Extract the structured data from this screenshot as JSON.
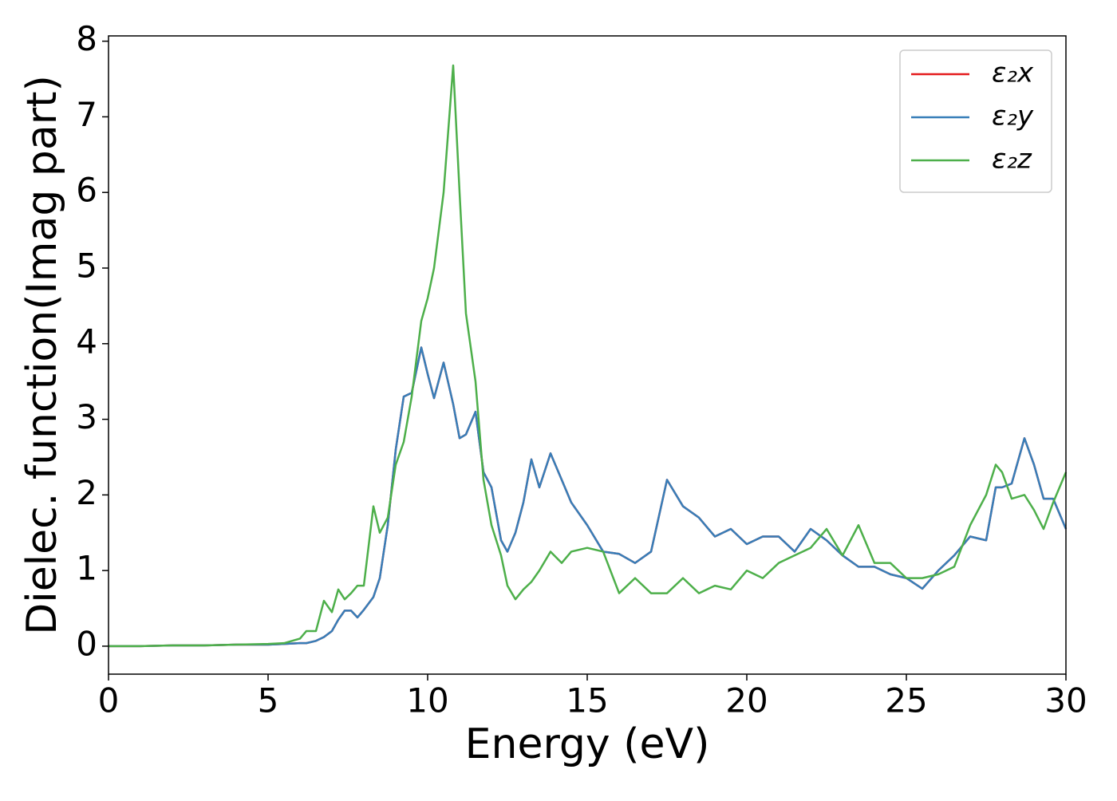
{
  "chart_data": {
    "type": "line",
    "xlabel": "Energy (eV)",
    "ylabel": "Dielec. function(Imag part)",
    "x": [
      0,
      1,
      2,
      3,
      4,
      5,
      5.5,
      6,
      6.2,
      6.5,
      6.75,
      7,
      7.2,
      7.4,
      7.6,
      7.8,
      8,
      8.3,
      8.5,
      8.75,
      9,
      9.25,
      9.5,
      9.8,
      10,
      10.2,
      10.5,
      10.8,
      11,
      11.2,
      11.5,
      11.75,
      12,
      12.3,
      12.5,
      12.75,
      13,
      13.25,
      13.5,
      13.85,
      14.2,
      14.5,
      15,
      15.5,
      16,
      16.5,
      17,
      17.5,
      18,
      18.5,
      19,
      19.5,
      20,
      20.5,
      21,
      21.5,
      22,
      22.5,
      23,
      23.5,
      24,
      24.5,
      25,
      25.5,
      26,
      26.5,
      27,
      27.5,
      27.8,
      28,
      28.3,
      28.7,
      29,
      29.3,
      29.6,
      30
    ],
    "series": [
      {
        "name": "ε₂x",
        "color": "#e41a1c",
        "values": [
          0,
          0,
          0.01,
          0.01,
          0.02,
          0.02,
          0.03,
          0.04,
          0.04,
          0.07,
          0.12,
          0.2,
          0.35,
          0.47,
          0.47,
          0.38,
          0.48,
          0.65,
          0.9,
          1.6,
          2.6,
          3.3,
          3.35,
          3.95,
          3.6,
          3.28,
          3.75,
          3.2,
          2.75,
          2.8,
          3.1,
          2.3,
          2.1,
          1.4,
          1.25,
          1.5,
          1.9,
          2.47,
          2.1,
          2.55,
          2.2,
          1.9,
          1.6,
          1.25,
          1.22,
          1.1,
          1.25,
          2.2,
          1.85,
          1.7,
          1.45,
          1.55,
          1.35,
          1.45,
          1.45,
          1.25,
          1.55,
          1.4,
          1.2,
          1.05,
          1.05,
          0.95,
          0.9,
          0.76,
          1.0,
          1.2,
          1.45,
          1.4,
          2.1,
          2.1,
          2.15,
          2.75,
          2.4,
          1.95,
          1.95,
          1.55
        ]
      },
      {
        "name": "ε₂y",
        "color": "#377eb8",
        "values": [
          0,
          0,
          0.01,
          0.01,
          0.02,
          0.02,
          0.03,
          0.04,
          0.04,
          0.07,
          0.12,
          0.2,
          0.35,
          0.47,
          0.47,
          0.38,
          0.48,
          0.65,
          0.9,
          1.6,
          2.6,
          3.3,
          3.35,
          3.95,
          3.6,
          3.28,
          3.75,
          3.2,
          2.75,
          2.8,
          3.1,
          2.3,
          2.1,
          1.4,
          1.25,
          1.5,
          1.9,
          2.47,
          2.1,
          2.55,
          2.2,
          1.9,
          1.6,
          1.25,
          1.22,
          1.1,
          1.25,
          2.2,
          1.85,
          1.7,
          1.45,
          1.55,
          1.35,
          1.45,
          1.45,
          1.25,
          1.55,
          1.4,
          1.2,
          1.05,
          1.05,
          0.95,
          0.9,
          0.76,
          1.0,
          1.2,
          1.45,
          1.4,
          2.1,
          2.1,
          2.15,
          2.75,
          2.4,
          1.95,
          1.95,
          1.55
        ]
      },
      {
        "name": "ε₂z",
        "color": "#4daf4a",
        "values": [
          0,
          0,
          0.01,
          0.01,
          0.02,
          0.03,
          0.04,
          0.1,
          0.2,
          0.2,
          0.6,
          0.45,
          0.75,
          0.62,
          0.7,
          0.8,
          0.8,
          1.85,
          1.5,
          1.7,
          2.4,
          2.7,
          3.3,
          4.3,
          4.6,
          5.0,
          6.0,
          7.68,
          6.0,
          4.4,
          3.5,
          2.2,
          1.6,
          1.2,
          0.8,
          0.62,
          0.75,
          0.85,
          1.0,
          1.25,
          1.1,
          1.25,
          1.3,
          1.25,
          0.7,
          0.9,
          0.7,
          0.7,
          0.9,
          0.7,
          0.8,
          0.75,
          1.0,
          0.9,
          1.1,
          1.2,
          1.3,
          1.55,
          1.2,
          1.6,
          1.1,
          1.1,
          0.9,
          0.9,
          0.95,
          1.05,
          1.6,
          2.0,
          2.4,
          2.3,
          1.95,
          2.0,
          1.8,
          1.55,
          1.9,
          2.3
        ]
      }
    ],
    "xlim": [
      0,
      30
    ],
    "xticks": [
      0,
      5,
      10,
      15,
      20,
      25,
      30
    ],
    "ylim": [
      -0.37,
      8.07
    ],
    "yticks": [
      0,
      1,
      2,
      3,
      4,
      5,
      6,
      7,
      8
    ],
    "grid": false,
    "legend": "upper right"
  }
}
